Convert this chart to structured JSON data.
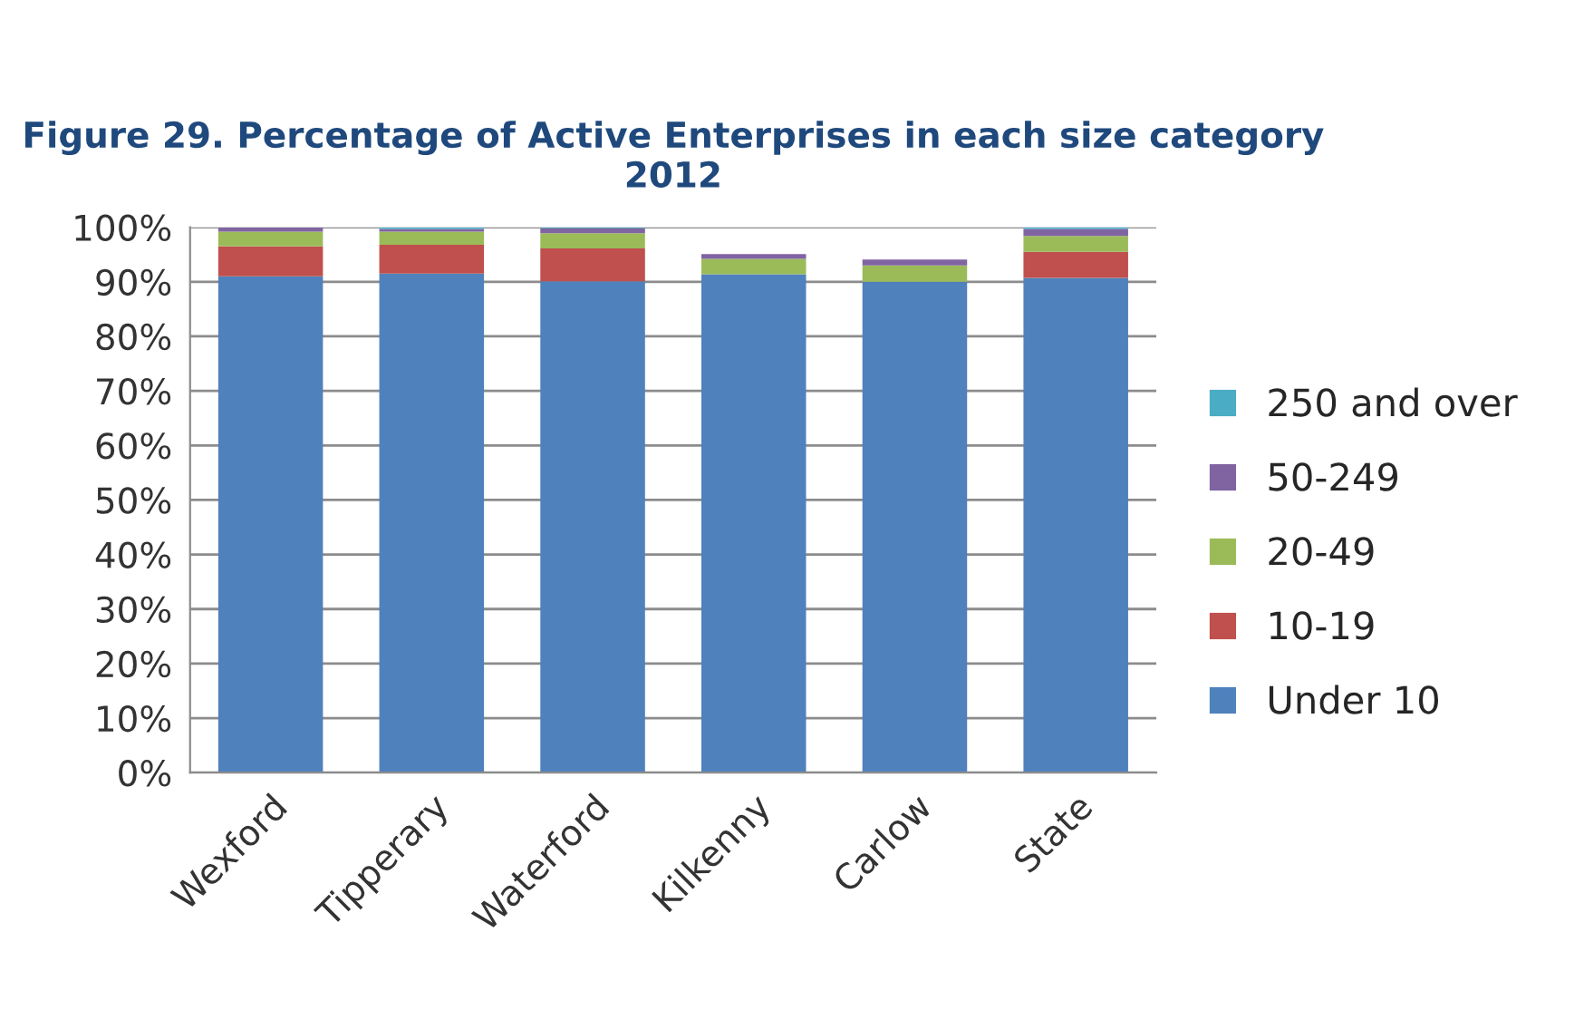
{
  "chart_data": {
    "type": "bar",
    "stacked": true,
    "title": "Figure 29. Percentage of Active Enterprises in each size category 2012",
    "categories": [
      "Wexford",
      "Tipperary",
      "Waterford",
      "Kilkenny",
      "Carlow",
      "State"
    ],
    "series": [
      {
        "name": "Under 10",
        "color": "#4f81bd",
        "values": [
          91.0,
          91.5,
          90.1,
          91.4,
          90.0,
          90.7
        ]
      },
      {
        "name": "10-19",
        "color": "#c0504d",
        "values": [
          5.5,
          5.3,
          6.0,
          null,
          null,
          4.8
        ]
      },
      {
        "name": "20-49",
        "color": "#9bbb59",
        "values": [
          2.7,
          2.4,
          2.8,
          2.8,
          3.0,
          2.9
        ]
      },
      {
        "name": "50-249",
        "color": "#8064a2",
        "values": [
          0.8,
          0.5,
          0.9,
          0.9,
          1.1,
          1.3
        ]
      },
      {
        "name": "250 and over",
        "color": "#4bacc6",
        "values": [
          null,
          0.3,
          0.2,
          null,
          null,
          0.3
        ]
      }
    ],
    "ylim": [
      0,
      100
    ],
    "yticks": [
      {
        "value": 0,
        "label": "0%"
      },
      {
        "value": 10,
        "label": "10%"
      },
      {
        "value": 20,
        "label": "20%"
      },
      {
        "value": 30,
        "label": "30%"
      },
      {
        "value": 40,
        "label": "40%"
      },
      {
        "value": 50,
        "label": "50%"
      },
      {
        "value": 60,
        "label": "60%"
      },
      {
        "value": 70,
        "label": "70%"
      },
      {
        "value": 80,
        "label": "80%"
      },
      {
        "value": 90,
        "label": "90%"
      },
      {
        "value": 100,
        "label": "100%"
      }
    ],
    "grid": "y",
    "legend": "right"
  }
}
